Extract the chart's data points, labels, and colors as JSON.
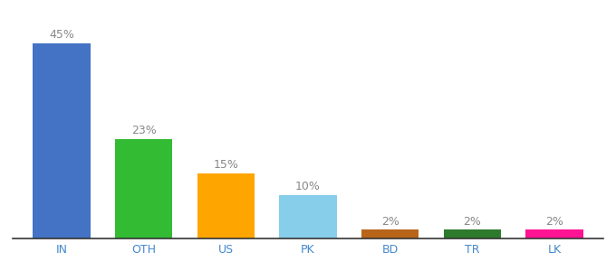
{
  "categories": [
    "IN",
    "OTH",
    "US",
    "PK",
    "BD",
    "TR",
    "LK"
  ],
  "values": [
    45,
    23,
    15,
    10,
    2,
    2,
    2
  ],
  "bar_colors": [
    "#4472C4",
    "#33BB33",
    "#FFA500",
    "#87CEEB",
    "#B8651A",
    "#2D7A2D",
    "#FF1493"
  ],
  "label_texts": [
    "45%",
    "23%",
    "15%",
    "10%",
    "2%",
    "2%",
    "2%"
  ],
  "background_color": "#ffffff",
  "ylim": [
    0,
    50
  ],
  "label_fontsize": 9,
  "tick_fontsize": 9,
  "label_color": "#888888",
  "tick_color": "#4488CC",
  "bar_width": 0.7
}
